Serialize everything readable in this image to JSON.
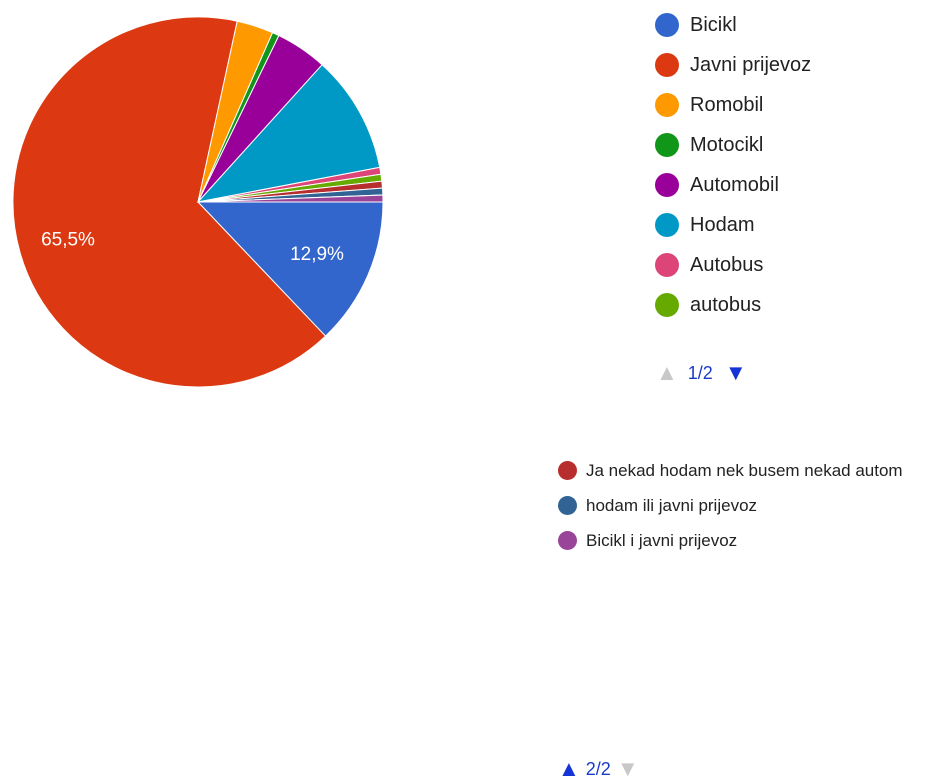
{
  "chart_data": {
    "type": "pie",
    "slices": [
      {
        "label": "Bicikl",
        "value": 12.9,
        "color": "#3366cc",
        "data_label": "12,9%"
      },
      {
        "label": "Javni prijevoz",
        "value": 65.5,
        "color": "#dc3912",
        "data_label": "65,5%"
      },
      {
        "label": "Romobil",
        "value": 3.2,
        "color": "#ff9900",
        "data_label": ""
      },
      {
        "label": "Motocikl",
        "value": 0.6,
        "color": "#109618",
        "data_label": ""
      },
      {
        "label": "Automobil",
        "value": 4.5,
        "color": "#990099",
        "data_label": ""
      },
      {
        "label": "Hodam",
        "value": 10.3,
        "color": "#0099c6",
        "data_label": ""
      },
      {
        "label": "Autobus",
        "value": 0.6,
        "color": "#dd4477",
        "data_label": ""
      },
      {
        "label": "autobus",
        "value": 0.6,
        "color": "#66aa00",
        "data_label": ""
      },
      {
        "label": "Ja nekad hodam nek busem nekad autom",
        "value": 0.6,
        "color": "#b82e2e",
        "data_label": ""
      },
      {
        "label": "hodam ili javni prijevoz",
        "value": 0.6,
        "color": "#316395",
        "data_label": ""
      },
      {
        "label": "Bicikl i javni prijevoz",
        "value": 0.6,
        "color": "#994499",
        "data_label": ""
      }
    ]
  },
  "legend_page_1": [
    "Bicikl",
    "Javni prijevoz",
    "Romobil",
    "Motocikl",
    "Automobil",
    "Hodam",
    "Autobus",
    "autobus"
  ],
  "legend_page_2": [
    "Ja nekad hodam nek busem nekad autom",
    "hodam ili javni prijevoz",
    "Bicikl i javni prijevoz"
  ],
  "pager_1": {
    "text": "1/2",
    "up_icon": "triangle-up-icon",
    "down_icon": "triangle-down-icon"
  },
  "pager_2": {
    "text": "2/2",
    "up_icon": "triangle-up-icon",
    "down_icon": "triangle-down-icon"
  }
}
